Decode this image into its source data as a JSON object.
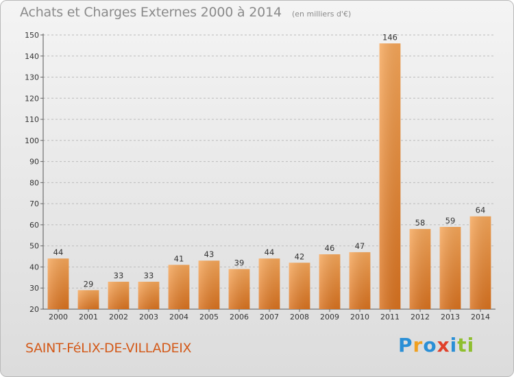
{
  "title": "Achats et Charges Externes 2000 à 2014",
  "subtitle": "(en milliers d'€)",
  "town": "SAINT-FéLIX-DE-VILLADEIX",
  "brand": {
    "p1": "P",
    "p2": "r",
    "p3": "o",
    "p4": "x",
    "p5": "i",
    "p6": "ti"
  },
  "colors": {
    "bar_top": "#f6a75a",
    "bar_bottom": "#d9721f",
    "grid": "#bbbbbb",
    "title": "#8a8a8a",
    "town": "#d35a1a"
  },
  "chart_data": {
    "type": "bar",
    "title": "Achats et Charges Externes 2000 à 2014",
    "ylabel": "(en milliers d'€)",
    "xlabel": "",
    "categories": [
      "2000",
      "2001",
      "2002",
      "2003",
      "2004",
      "2005",
      "2006",
      "2007",
      "2008",
      "2009",
      "2010",
      "2011",
      "2012",
      "2013",
      "2014"
    ],
    "values": [
      44,
      29,
      33,
      33,
      41,
      43,
      39,
      44,
      42,
      46,
      47,
      146,
      58,
      59,
      64
    ],
    "ylim": [
      20,
      150
    ],
    "yticks": [
      20,
      30,
      40,
      50,
      60,
      70,
      80,
      90,
      100,
      110,
      120,
      130,
      140,
      150
    ],
    "grid": true
  }
}
